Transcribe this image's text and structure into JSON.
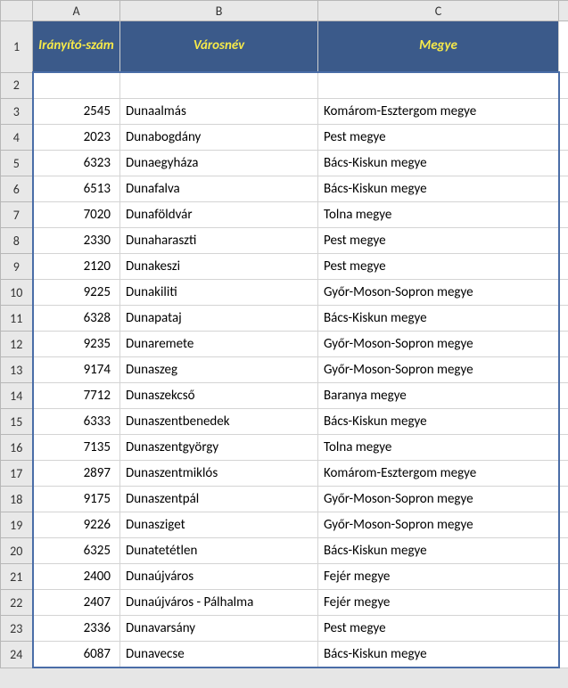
{
  "columns": {
    "letters": [
      "A",
      "B",
      "C"
    ],
    "headers": [
      "Irányító-szám",
      "Városnév",
      "Megye"
    ]
  },
  "header_style": {
    "background_color": "#3b5a8a",
    "text_color": "#f6e94a",
    "font_style": "italic",
    "font_weight": "600"
  },
  "grid_style": {
    "gutter_background": "#e8e8e8",
    "gutter_border": "#b7b7b7",
    "cell_border": "#d4d4d4",
    "table_border": "#4a6da7",
    "background_color": "#ffffff"
  },
  "row_numbers": [
    1,
    2,
    3,
    4,
    5,
    6,
    7,
    8,
    9,
    10,
    11,
    12,
    13,
    14,
    15,
    16,
    17,
    18,
    19,
    20,
    21,
    22,
    23,
    24
  ],
  "rows": [
    {
      "code": "2545",
      "city": "Dunaalmás",
      "county": "Komárom-Esztergom megye"
    },
    {
      "code": "2023",
      "city": "Dunabogdány",
      "county": "Pest megye"
    },
    {
      "code": "6323",
      "city": "Dunaegyháza",
      "county": "Bács-Kiskun megye"
    },
    {
      "code": "6513",
      "city": "Dunafalva",
      "county": "Bács-Kiskun megye"
    },
    {
      "code": "7020",
      "city": "Dunaföldvár",
      "county": "Tolna megye"
    },
    {
      "code": "2330",
      "city": "Dunaharaszti",
      "county": "Pest megye"
    },
    {
      "code": "2120",
      "city": "Dunakeszi",
      "county": "Pest megye"
    },
    {
      "code": "9225",
      "city": "Dunakiliti",
      "county": "Győr-Moson-Sopron megye"
    },
    {
      "code": "6328",
      "city": "Dunapataj",
      "county": "Bács-Kiskun megye"
    },
    {
      "code": "9235",
      "city": "Dunaremete",
      "county": "Győr-Moson-Sopron megye"
    },
    {
      "code": "9174",
      "city": "Dunaszeg",
      "county": "Győr-Moson-Sopron megye"
    },
    {
      "code": "7712",
      "city": "Dunaszekcső",
      "county": "Baranya megye"
    },
    {
      "code": "6333",
      "city": "Dunaszentbenedek",
      "county": "Bács-Kiskun megye"
    },
    {
      "code": "7135",
      "city": "Dunaszentgyörgy",
      "county": "Tolna megye"
    },
    {
      "code": "2897",
      "city": "Dunaszentmiklós",
      "county": "Komárom-Esztergom megye"
    },
    {
      "code": "9175",
      "city": "Dunaszentpál",
      "county": "Győr-Moson-Sopron megye"
    },
    {
      "code": "9226",
      "city": "Dunasziget",
      "county": "Győr-Moson-Sopron megye"
    },
    {
      "code": "6325",
      "city": "Dunatetétlen",
      "county": "Bács-Kiskun megye"
    },
    {
      "code": "2400",
      "city": "Dunaújváros",
      "county": "Fejér megye"
    },
    {
      "code": "2407",
      "city": "Dunaújváros - Pálhalma",
      "county": "Fejér megye"
    },
    {
      "code": "2336",
      "city": "Dunavarsány",
      "county": "Pest megye"
    },
    {
      "code": "6087",
      "city": "Dunavecse",
      "county": "Bács-Kiskun megye"
    }
  ]
}
